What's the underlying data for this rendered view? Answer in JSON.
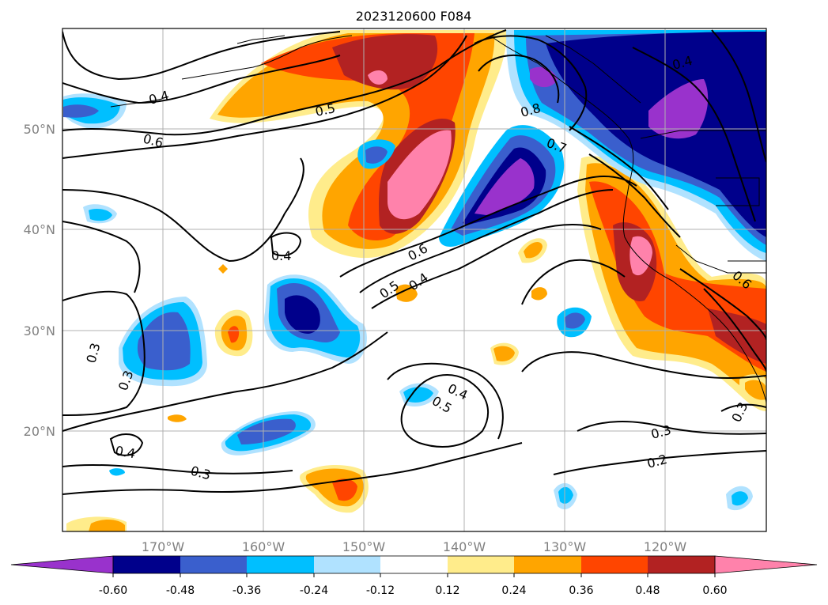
{
  "title": "2023120600 F084",
  "map": {
    "lon_range": [
      -180,
      -110
    ],
    "lat_range": [
      10,
      60
    ],
    "gridlines": true,
    "lat_ticks": [
      "50°N",
      "40°N",
      "30°N",
      "20°N"
    ],
    "lon_ticks": [
      "170°W",
      "160°W",
      "150°W",
      "140°W",
      "130°W",
      "120°W"
    ],
    "contour_labels": [
      "0.4",
      "0.5",
      "0.6",
      "0.4",
      "0.5",
      "0.4",
      "0.3",
      "0.3",
      "0.4",
      "0.3",
      "0.4",
      "0.5",
      "0.3",
      "0.2",
      "0.6",
      "0.7",
      "0.8",
      "0.4",
      "0.6",
      "0.3"
    ]
  },
  "colorbar": {
    "labels": [
      "-0.60",
      "-0.48",
      "-0.36",
      "-0.24",
      "-0.12",
      "0.12",
      "0.24",
      "0.36",
      "0.48",
      "0.60"
    ],
    "colors": [
      "#9932cc",
      "#00008b",
      "#3a5fcd",
      "#00bfff",
      "#b0e2ff",
      "#ffffff",
      "#ffec8b",
      "#ffa500",
      "#ff4500",
      "#b22222",
      "#ff82ab"
    ],
    "extend": "both"
  },
  "colors": {
    "purple": "#9932cc",
    "navy": "#00008b",
    "royal": "#3a5fcd",
    "sky": "#00bfff",
    "pale_blue": "#b0e2ff",
    "yellow": "#ffec8b",
    "orange": "#ffa500",
    "red_orange": "#ff4500",
    "dark_red": "#b22222",
    "pink": "#ff82ab"
  }
}
